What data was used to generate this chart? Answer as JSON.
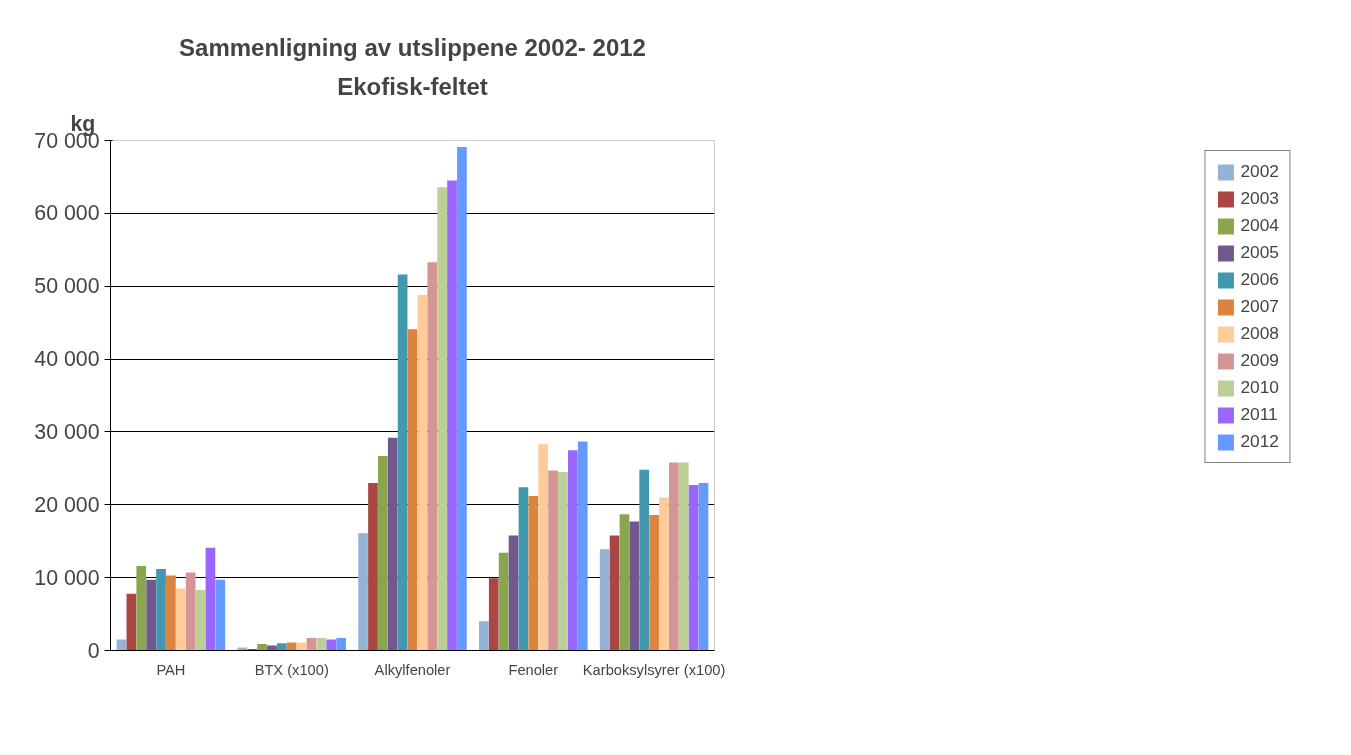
{
  "chart_data": {
    "type": "bar",
    "title": "Sammenligning av utslippene 2002- 2012",
    "subtitle": "Ekofisk-feltet",
    "ylabel": "kg",
    "categories": [
      "PAH",
      "BTX (x100)",
      "Alkylfenoler",
      "Fenoler",
      "Karboksylsyrer (x100)"
    ],
    "series": [
      {
        "name": "2002",
        "color": "#95b3d7",
        "values": [
          1500,
          400,
          16100,
          4000,
          13900
        ]
      },
      {
        "name": "2003",
        "color": "#aa4643",
        "values": [
          7800,
          200,
          23000,
          9900,
          15800
        ]
      },
      {
        "name": "2004",
        "color": "#89a54e",
        "values": [
          11600,
          900,
          26700,
          13400,
          18700
        ]
      },
      {
        "name": "2005",
        "color": "#71588f",
        "values": [
          9700,
          700,
          29200,
          15800,
          17700
        ]
      },
      {
        "name": "2006",
        "color": "#4198af",
        "values": [
          11200,
          1000,
          51600,
          22400,
          24800
        ]
      },
      {
        "name": "2007",
        "color": "#db843d",
        "values": [
          10300,
          1100,
          44100,
          21200,
          18600
        ]
      },
      {
        "name": "2008",
        "color": "#ffcc99",
        "values": [
          8500,
          1100,
          48800,
          28300,
          21000
        ]
      },
      {
        "name": "2009",
        "color": "#d49594",
        "values": [
          10700,
          1700,
          53300,
          24700,
          25800
        ]
      },
      {
        "name": "2010",
        "color": "#bbcf96",
        "values": [
          8300,
          1700,
          63600,
          24500,
          25800
        ]
      },
      {
        "name": "2011",
        "color": "#9966ff",
        "values": [
          14100,
          1500,
          64500,
          27500,
          22700
        ]
      },
      {
        "name": "2012",
        "color": "#6699ff",
        "values": [
          9700,
          1700,
          69100,
          28700,
          23000
        ]
      }
    ],
    "ylim": [
      0,
      70000
    ],
    "yticks": [
      {
        "value": 0,
        "label": "0"
      },
      {
        "value": 10000,
        "label": "10 000"
      },
      {
        "value": 20000,
        "label": "20 000"
      },
      {
        "value": 30000,
        "label": "30 000"
      },
      {
        "value": 40000,
        "label": "40 000"
      },
      {
        "value": 50000,
        "label": "50 000"
      },
      {
        "value": 60000,
        "label": "60 000"
      },
      {
        "value": 70000,
        "label": "70 000"
      }
    ],
    "grid": "y",
    "legend": "right"
  }
}
